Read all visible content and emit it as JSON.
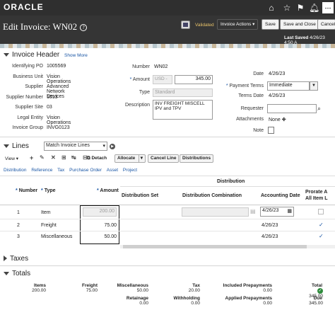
{
  "header": {
    "brand": "ORACLE",
    "page_title": "Edit Invoice: WN02",
    "status": "Validated",
    "invoice_actions_label": "Invoice Actions",
    "save_label": "Save",
    "save_close_label": "Save and Close",
    "cancel_label": "Cancel",
    "last_saved_label": "Last Saved",
    "last_saved_value": "4/26/23 4:50 A"
  },
  "invoice_header": {
    "title": "Invoice Header",
    "show_more": "Show More",
    "left_fields": [
      {
        "label": "Identifying PO",
        "value": "1005569"
      },
      {
        "label": "Business Unit",
        "value": "Vision Operations"
      },
      {
        "label": "Supplier",
        "value": "Advanced Network Devices"
      },
      {
        "label": "Supplier Number",
        "value": "1013"
      },
      {
        "label": "Supplier Site",
        "value": "03"
      },
      {
        "label": "Legal Entity",
        "value": "Vision Operations"
      },
      {
        "label": "Invoice Group",
        "value": "INVG0123"
      }
    ],
    "number_label": "Number",
    "number_value": "WN02",
    "amount_label": "Amount",
    "currency_value": "USD -",
    "amount_value": "345.00",
    "type_label": "Type",
    "type_value": "Standard",
    "description_label": "Description",
    "description_value": "INV FREIGHT MISCELL IPV and TPV",
    "date_label": "Date",
    "date_value": "4/26/23",
    "payment_terms_label": "Payment Terms",
    "payment_terms_value": "Immediate",
    "terms_date_label": "Terms Date",
    "terms_date_value": "4/26/23",
    "requester_label": "Requester",
    "attachments_label": "Attachments",
    "attachments_value": "None",
    "note_label": "Note"
  },
  "lines": {
    "title": "Lines",
    "match_select_value": "Match Invoice Lines",
    "view_label": "View",
    "detach_label": "Detach",
    "allocate_label": "Allocate",
    "cancel_line_label": "Cancel Line",
    "distributions_label": "Distributions",
    "tabs": [
      "Distribution",
      "Reference",
      "Tax",
      "Purchase Order",
      "Asset",
      "Project"
    ],
    "group_header": "Distribution",
    "columns": {
      "number": "Number",
      "type": "Type",
      "amount": "Amount",
      "dist_set": "Distribution Set",
      "dist_combo": "Distribution Combination",
      "accounting_date": "Accounting Date",
      "prorate_1": "Prorate A",
      "prorate_2": "All Item L"
    },
    "rows": [
      {
        "number": "1",
        "type": "Item",
        "amount": "200.00",
        "accounting_date": "4/26/23"
      },
      {
        "number": "2",
        "type": "Freight",
        "amount": "75.00",
        "accounting_date": "4/26/23"
      },
      {
        "number": "3",
        "type": "Miscellaneous",
        "amount": "50.00",
        "accounting_date": "4/26/23"
      }
    ]
  },
  "taxes": {
    "title": "Taxes"
  },
  "totals": {
    "title": "Totals",
    "items_label": "Items",
    "items_value": "200.00",
    "freight_label": "Freight",
    "freight_value": "75.00",
    "misc_label": "Miscellaneous",
    "misc_value": "50.00",
    "tax_label": "Tax",
    "tax_value": "20.00",
    "included_prepay_label": "Included Prepayments",
    "included_prepay_value": "0.00",
    "total_label": "Total",
    "total_value": "345.00",
    "retainage_label": "Retainage",
    "retainage_value": "0.00",
    "withholding_label": "Withholding",
    "withholding_value": "0.00",
    "applied_prepay_label": "Applied Prepayments",
    "applied_prepay_value": "0.00",
    "due_label": "Due",
    "due_value": "345.00"
  },
  "colors": {
    "accent": "#1a56a5",
    "topbar": "#2f2f2f",
    "validated": "#e8c36a"
  },
  "icons": [
    "hamburger-icon",
    "home-icon",
    "star-icon",
    "flag-icon",
    "bell-icon",
    "help-icon",
    "save-doc-icon",
    "chevron-down-icon",
    "plus-icon",
    "edit-icon",
    "delete-icon",
    "freeze-icon",
    "detach-icon",
    "calendar-icon",
    "check-icon"
  ]
}
